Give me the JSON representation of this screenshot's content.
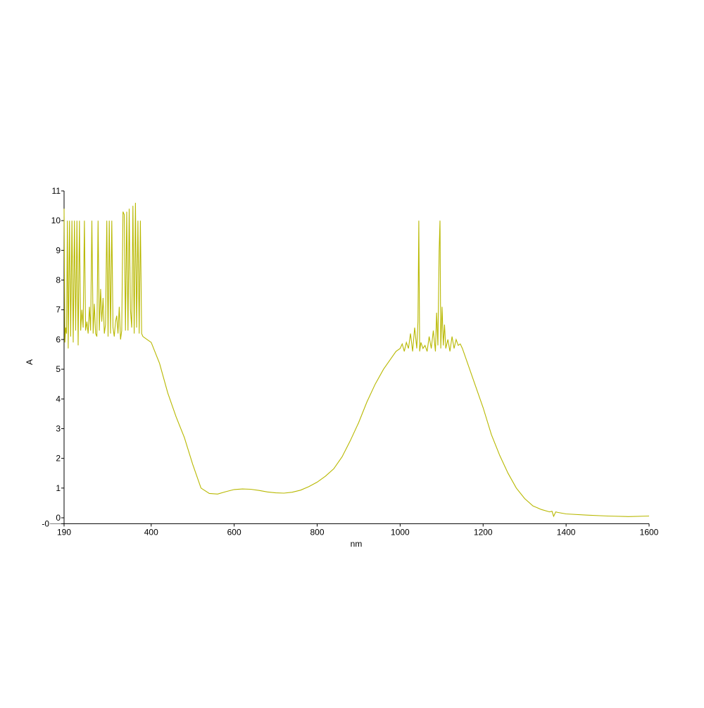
{
  "chart_data": {
    "type": "line",
    "title": "",
    "xlabel": "nm",
    "ylabel": "A",
    "xlim": [
      190,
      1600
    ],
    "ylim": [
      -0.2,
      11
    ],
    "x_ticks": [
      190,
      400,
      600,
      800,
      1000,
      1200,
      1400,
      1600
    ],
    "y_ticks": [
      0,
      1,
      2,
      3,
      4,
      5,
      6,
      7,
      8,
      9,
      10,
      11
    ],
    "y_tick_labels": [
      "0",
      "1",
      "2",
      "3",
      "4",
      "5",
      "6",
      "7",
      "8",
      "9",
      "10",
      "11"
    ],
    "y_extra_tick_label": "-0",
    "grid": false,
    "color": "#b8b800",
    "series": [
      {
        "x": [
          190,
          192,
          194,
          196,
          198,
          200,
          203,
          206,
          209,
          212,
          215,
          218,
          221,
          224,
          227,
          230,
          233,
          236,
          239,
          242,
          245,
          248,
          251,
          254,
          257,
          260,
          263,
          266,
          269,
          272,
          275,
          278,
          281,
          284,
          287,
          290,
          293,
          296,
          299,
          302,
          305,
          308,
          311,
          314,
          317,
          320,
          323,
          326,
          329,
          332,
          335,
          338,
          341,
          344,
          347,
          350,
          353,
          356,
          359,
          362,
          365,
          368,
          371,
          374,
          377,
          380,
          390,
          400,
          420,
          440,
          460,
          480,
          500,
          520,
          540,
          560,
          580,
          600,
          620,
          640,
          660,
          680,
          700,
          720,
          740,
          760,
          780,
          800,
          820,
          840,
          860,
          880,
          900,
          920,
          940,
          960,
          980,
          990,
          1000,
          1005,
          1010,
          1015,
          1020,
          1025,
          1030,
          1035,
          1040,
          1043,
          1045,
          1047,
          1050,
          1055,
          1060,
          1065,
          1070,
          1075,
          1080,
          1085,
          1088,
          1091,
          1094,
          1096,
          1098,
          1101,
          1104,
          1107,
          1110,
          1115,
          1120,
          1125,
          1130,
          1135,
          1140,
          1145,
          1150,
          1160,
          1180,
          1200,
          1220,
          1240,
          1260,
          1280,
          1300,
          1320,
          1340,
          1360,
          1366,
          1370,
          1375,
          1380,
          1400,
          1450,
          1500,
          1550,
          1600
        ],
        "y": [
          10.4,
          5.9,
          6.4,
          6.2,
          10,
          5.7,
          10,
          6.1,
          10,
          5.9,
          10,
          6.3,
          10,
          5.8,
          10,
          6.3,
          7.0,
          6.4,
          10,
          6.3,
          6.6,
          6.2,
          7.1,
          6.3,
          10,
          6.2,
          7.2,
          6.2,
          6.1,
          10,
          6.3,
          7.7,
          6.6,
          7.4,
          6.2,
          6.5,
          10,
          6.1,
          10,
          6.2,
          10,
          6.4,
          6.1,
          6.6,
          6.8,
          6.2,
          7.1,
          6.0,
          6.3,
          10.3,
          10.2,
          6.3,
          10.3,
          6.3,
          10.4,
          7.0,
          6.4,
          10.5,
          6.2,
          10.6,
          6.4,
          10,
          6.2,
          10,
          6.2,
          6.1,
          6.0,
          5.9,
          5.2,
          4.2,
          3.4,
          2.7,
          1.8,
          1.0,
          0.82,
          0.8,
          0.88,
          0.95,
          0.97,
          0.96,
          0.92,
          0.87,
          0.84,
          0.83,
          0.86,
          0.93,
          1.05,
          1.2,
          1.4,
          1.65,
          2.05,
          2.6,
          3.2,
          3.9,
          4.5,
          5.0,
          5.4,
          5.6,
          5.7,
          5.85,
          5.6,
          5.9,
          5.7,
          6.2,
          5.6,
          6.4,
          5.7,
          6.6,
          10,
          5.6,
          5.9,
          5.7,
          5.8,
          5.6,
          6.1,
          5.7,
          6.3,
          5.6,
          6.9,
          5.8,
          9.0,
          10,
          5.7,
          7.1,
          5.8,
          6.5,
          5.7,
          6.0,
          5.6,
          6.1,
          5.7,
          6.0,
          5.8,
          5.85,
          5.7,
          5.3,
          4.5,
          3.7,
          2.8,
          2.1,
          1.5,
          1.0,
          0.65,
          0.4,
          0.28,
          0.2,
          0.22,
          0.05,
          0.2,
          0.18,
          0.13,
          0.09,
          0.06,
          0.04,
          0.06
        ]
      }
    ]
  }
}
